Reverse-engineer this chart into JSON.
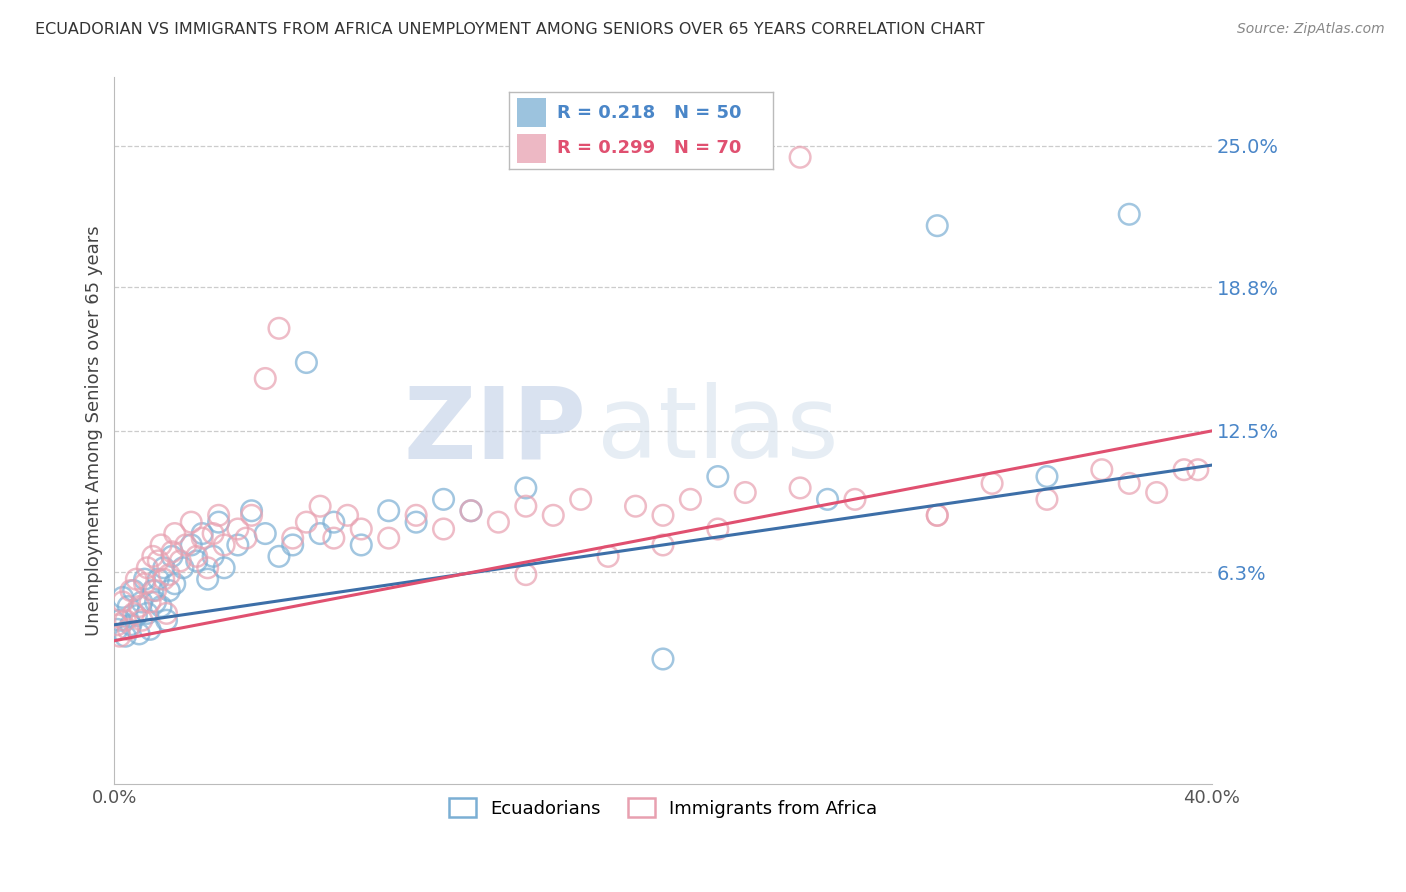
{
  "title": "ECUADORIAN VS IMMIGRANTS FROM AFRICA UNEMPLOYMENT AMONG SENIORS OVER 65 YEARS CORRELATION CHART",
  "source": "Source: ZipAtlas.com",
  "ylabel": "Unemployment Among Seniors over 65 years",
  "xlim": [
    0.0,
    0.4
  ],
  "ylim": [
    -0.03,
    0.28
  ],
  "yticks": [
    0.063,
    0.125,
    0.188,
    0.25
  ],
  "ytick_labels": [
    "6.3%",
    "12.5%",
    "18.8%",
    "25.0%"
  ],
  "watermark_zip": "ZIP",
  "watermark_atlas": "atlas",
  "blue_color": "#7bafd4",
  "pink_color": "#e8a0b0",
  "blue_line_color": "#3d6fa8",
  "pink_line_color": "#e05070",
  "legend_blue_R": "R = 0.218",
  "legend_blue_N": "N = 50",
  "legend_pink_R": "R = 0.299",
  "legend_pink_N": "N = 70",
  "ecuadorians_x": [
    0.001,
    0.002,
    0.003,
    0.004,
    0.005,
    0.006,
    0.007,
    0.008,
    0.009,
    0.01,
    0.011,
    0.012,
    0.013,
    0.014,
    0.015,
    0.016,
    0.017,
    0.018,
    0.019,
    0.02,
    0.021,
    0.022,
    0.025,
    0.028,
    0.03,
    0.032,
    0.034,
    0.036,
    0.038,
    0.04,
    0.045,
    0.05,
    0.055,
    0.06,
    0.065,
    0.07,
    0.075,
    0.08,
    0.09,
    0.1,
    0.11,
    0.12,
    0.13,
    0.15,
    0.2,
    0.22,
    0.26,
    0.3,
    0.34,
    0.37
  ],
  "ecuadorians_y": [
    0.038,
    0.042,
    0.052,
    0.035,
    0.048,
    0.04,
    0.055,
    0.044,
    0.036,
    0.05,
    0.06,
    0.045,
    0.038,
    0.055,
    0.05,
    0.06,
    0.048,
    0.065,
    0.042,
    0.055,
    0.07,
    0.058,
    0.065,
    0.075,
    0.068,
    0.08,
    0.06,
    0.07,
    0.085,
    0.065,
    0.075,
    0.09,
    0.08,
    0.07,
    0.075,
    0.155,
    0.08,
    0.085,
    0.075,
    0.09,
    0.085,
    0.095,
    0.09,
    0.1,
    0.025,
    0.105,
    0.095,
    0.215,
    0.105,
    0.22
  ],
  "africa_x": [
    0.001,
    0.002,
    0.003,
    0.004,
    0.005,
    0.006,
    0.007,
    0.008,
    0.009,
    0.01,
    0.011,
    0.012,
    0.013,
    0.014,
    0.015,
    0.016,
    0.017,
    0.018,
    0.019,
    0.02,
    0.021,
    0.022,
    0.024,
    0.026,
    0.028,
    0.03,
    0.032,
    0.034,
    0.036,
    0.038,
    0.04,
    0.045,
    0.048,
    0.05,
    0.055,
    0.06,
    0.065,
    0.07,
    0.075,
    0.08,
    0.085,
    0.09,
    0.1,
    0.11,
    0.12,
    0.13,
    0.14,
    0.15,
    0.16,
    0.17,
    0.18,
    0.19,
    0.2,
    0.21,
    0.22,
    0.23,
    0.25,
    0.27,
    0.3,
    0.32,
    0.34,
    0.36,
    0.37,
    0.38,
    0.39,
    0.395,
    0.15,
    0.2,
    0.25,
    0.3
  ],
  "africa_y": [
    0.04,
    0.035,
    0.05,
    0.042,
    0.038,
    0.055,
    0.045,
    0.06,
    0.048,
    0.042,
    0.058,
    0.065,
    0.05,
    0.07,
    0.055,
    0.068,
    0.075,
    0.06,
    0.045,
    0.062,
    0.072,
    0.08,
    0.068,
    0.075,
    0.085,
    0.07,
    0.078,
    0.065,
    0.08,
    0.088,
    0.075,
    0.082,
    0.078,
    0.088,
    0.148,
    0.17,
    0.078,
    0.085,
    0.092,
    0.078,
    0.088,
    0.082,
    0.078,
    0.088,
    0.082,
    0.09,
    0.085,
    0.092,
    0.088,
    0.095,
    0.07,
    0.092,
    0.088,
    0.095,
    0.082,
    0.098,
    0.1,
    0.095,
    0.088,
    0.102,
    0.095,
    0.108,
    0.102,
    0.098,
    0.108,
    0.108,
    0.062,
    0.075,
    0.245,
    0.088
  ]
}
